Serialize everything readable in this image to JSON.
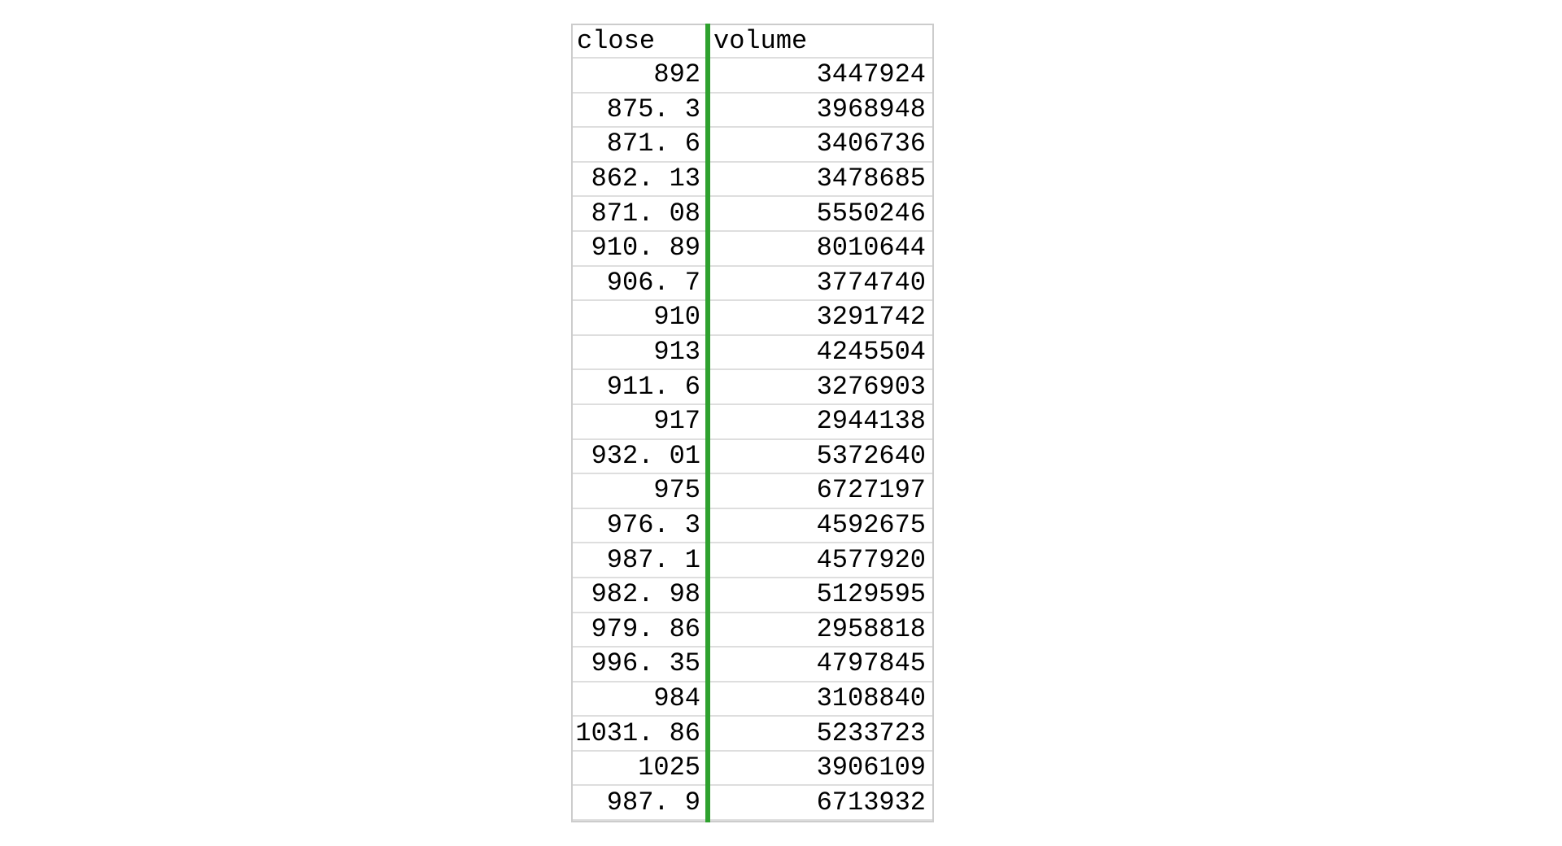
{
  "table": {
    "columns": [
      "close",
      "volume"
    ],
    "rows": [
      [
        "892",
        "3447924"
      ],
      [
        "875. 3",
        "3968948"
      ],
      [
        "871. 6",
        "3406736"
      ],
      [
        "862. 13",
        "3478685"
      ],
      [
        "871. 08",
        "5550246"
      ],
      [
        "910. 89",
        "8010644"
      ],
      [
        "906. 7",
        "3774740"
      ],
      [
        "910",
        "3291742"
      ],
      [
        "913",
        "4245504"
      ],
      [
        "911. 6",
        "3276903"
      ],
      [
        "917",
        "2944138"
      ],
      [
        "932. 01",
        "5372640"
      ],
      [
        "975",
        "6727197"
      ],
      [
        "976. 3",
        "4592675"
      ],
      [
        "987. 1",
        "4577920"
      ],
      [
        "982. 98",
        "5129595"
      ],
      [
        "979. 86",
        "2958818"
      ],
      [
        "996. 35",
        "4797845"
      ],
      [
        "984",
        "3108840"
      ],
      [
        "1031. 86",
        "5233723"
      ],
      [
        "1025",
        "3906109"
      ],
      [
        "987. 9",
        "6713932"
      ]
    ]
  },
  "colors": {
    "divider_green": "#2ea12e",
    "grid_line": "#dedede",
    "outer_border": "#cccccc",
    "text": "#000000",
    "background": "#ffffff"
  }
}
